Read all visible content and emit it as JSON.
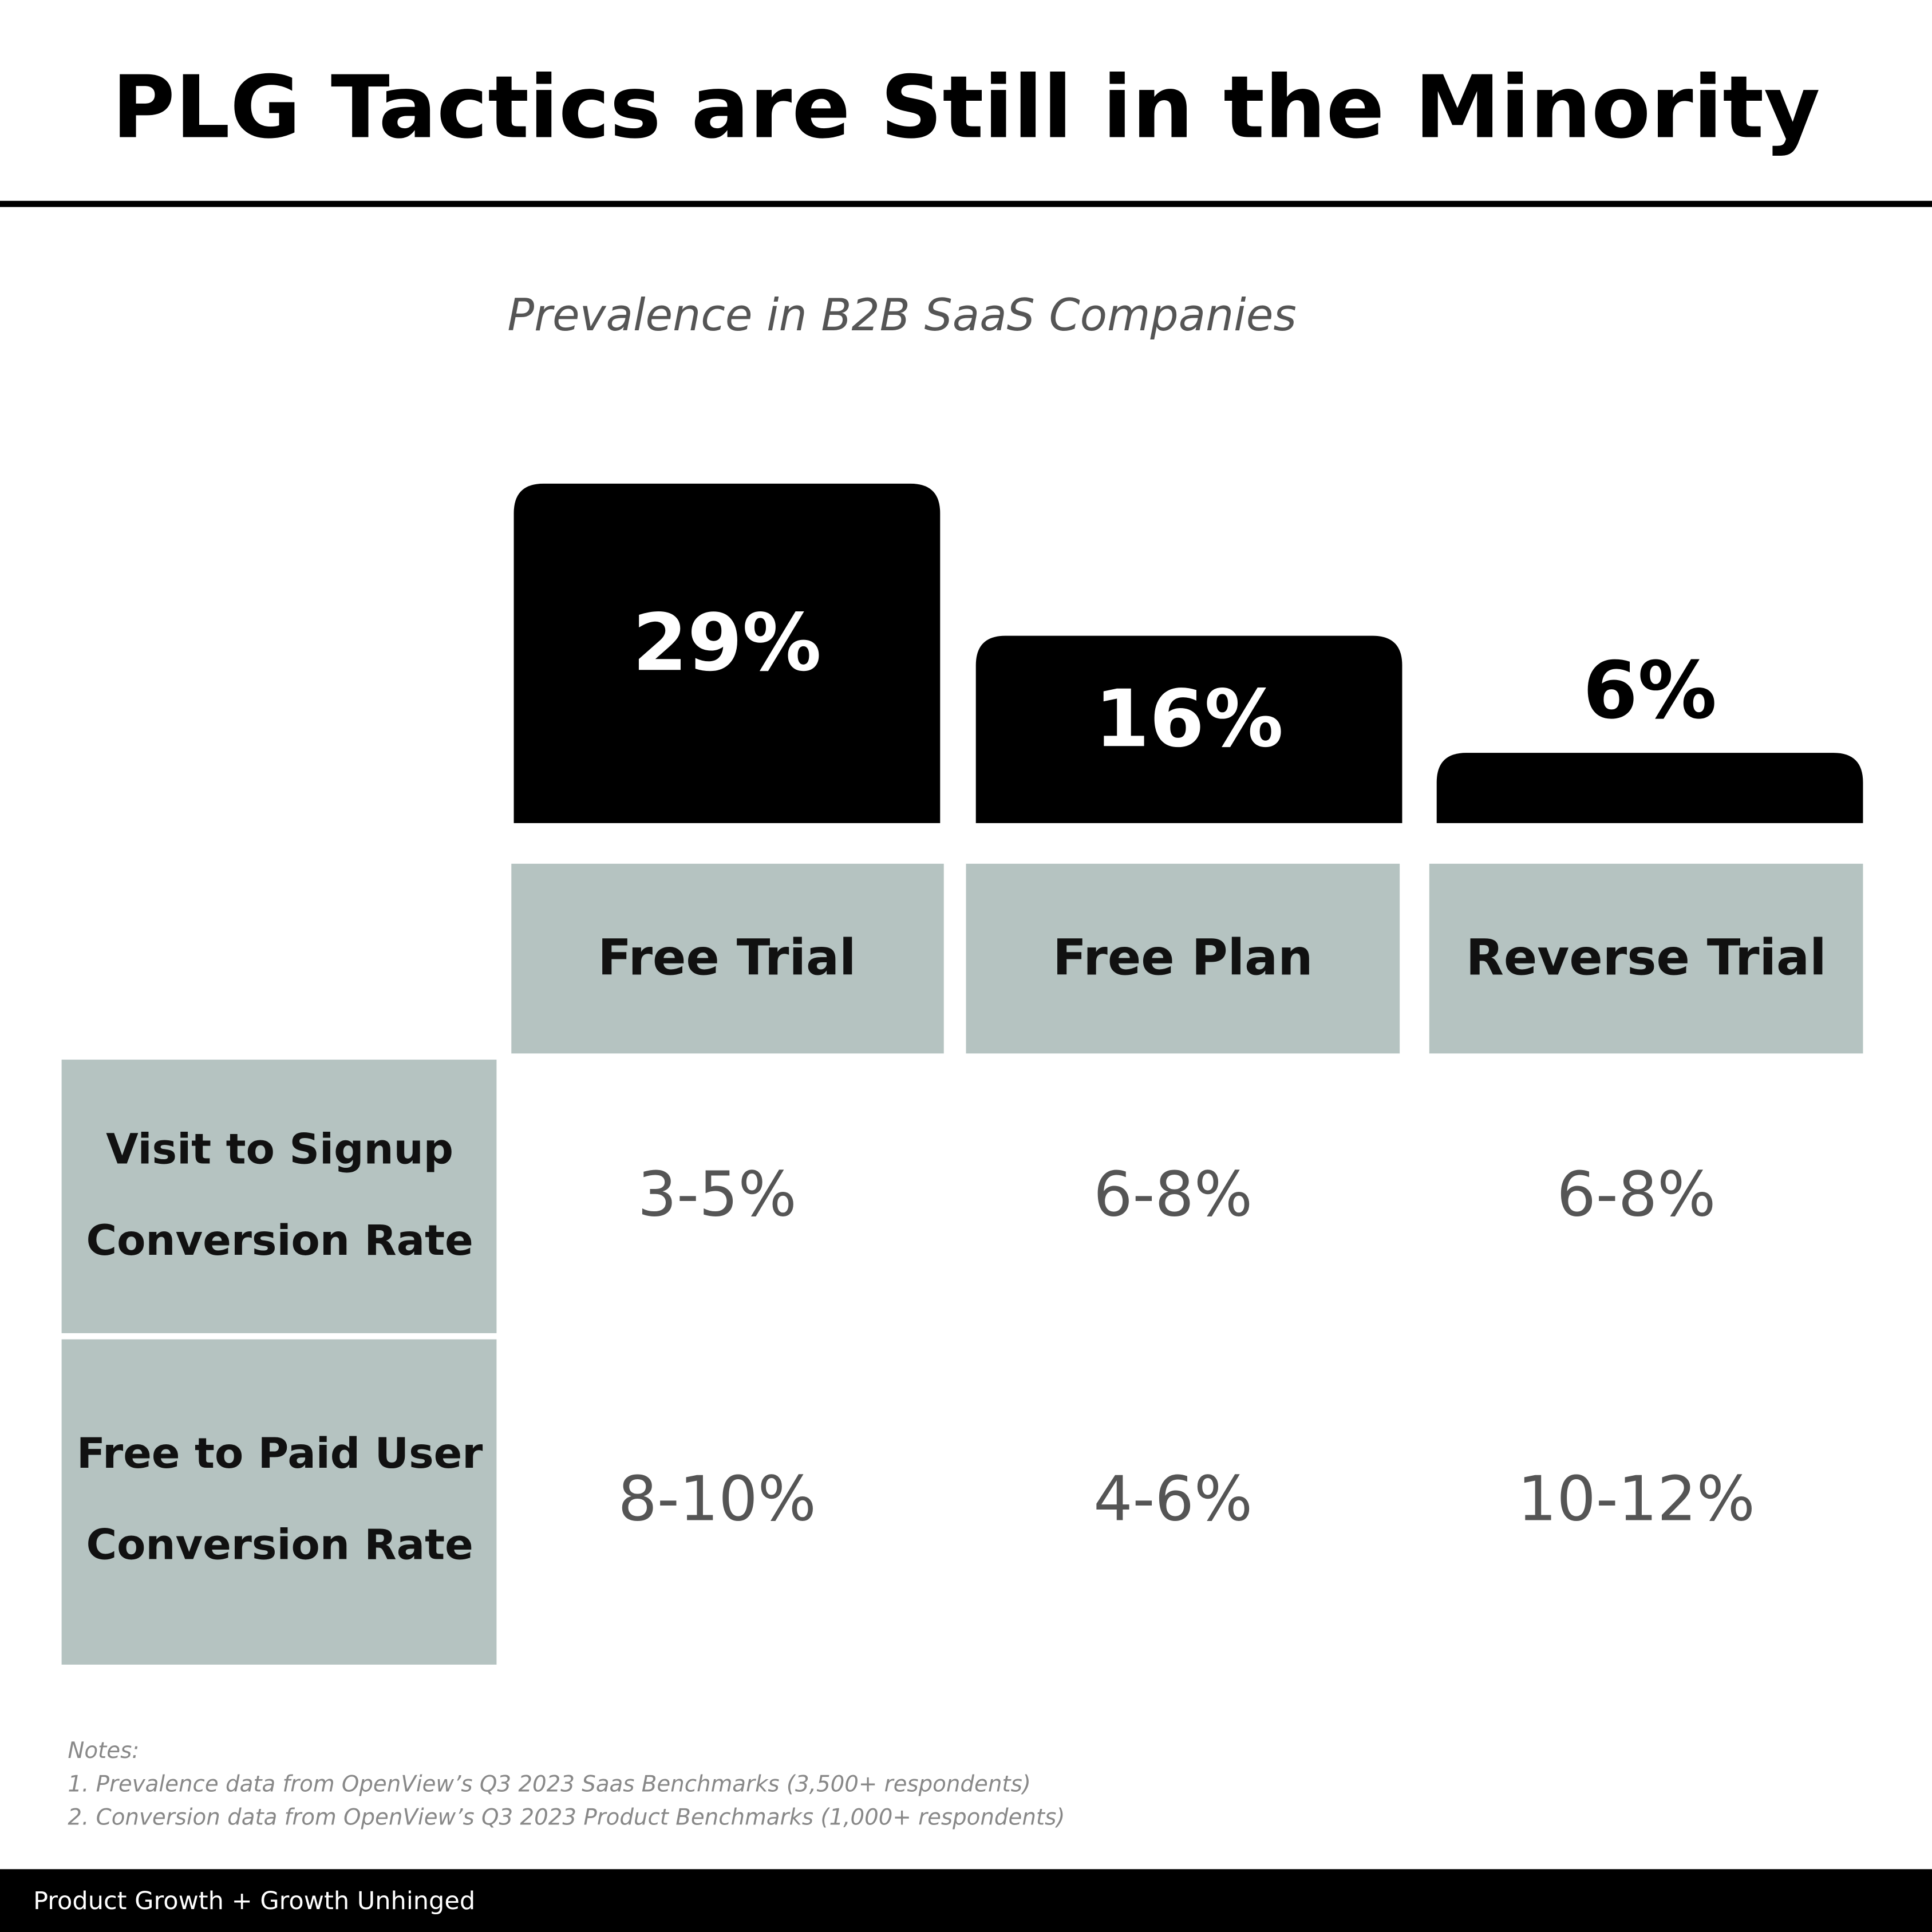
{
  "chart_data": {
    "type": "bar",
    "title": "PLG Tactics are Still in the Minority",
    "subtitle": "Prevalence in B2B SaaS Companies",
    "categories": [
      "Free Trial",
      "Free Plan",
      "Reverse Trial"
    ],
    "values": [
      29,
      16,
      6
    ],
    "value_labels": [
      "29%",
      "16%",
      "6%"
    ],
    "color": "#000000"
  },
  "table": {
    "rows": [
      {
        "label": [
          "Visit to Signup",
          "Conversion Rate"
        ],
        "cells": [
          "3-5%",
          "6-8%",
          "6-8%"
        ]
      },
      {
        "label": [
          "Free to Paid User",
          "Conversion Rate"
        ],
        "cells": [
          "8-10%",
          "4-6%",
          "10-12%"
        ]
      }
    ]
  },
  "notes": {
    "heading": "Notes:",
    "items": [
      "1. Prevalence data from OpenView’s Q3 2023 Saas Benchmarks (3,500+ respondents)",
      "2. Conversion data from OpenView’s Q3 2023 Product Benchmarks (1,000+ respondents)"
    ]
  },
  "footer": "Product Growth + Growth Unhinged"
}
